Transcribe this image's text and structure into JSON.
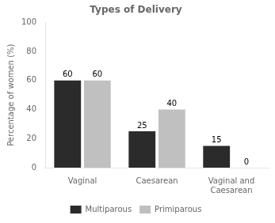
{
  "chart_data": {
    "type": "bar",
    "title": "Types of Delivery",
    "ylabel": "Percentage of women (%)",
    "categories": [
      "Vaginal",
      "Caesarean",
      "Vaginal and\nCaesarean"
    ],
    "series": [
      {
        "name": "Multiparous",
        "color": "#2b2b2b",
        "values": [
          60,
          25,
          15
        ]
      },
      {
        "name": "Primiparous",
        "color": "#c0c0c0",
        "values": [
          60,
          40,
          0
        ]
      }
    ],
    "ylim": [
      0,
      100
    ],
    "yticks": [
      0,
      20,
      40,
      60,
      80,
      100
    ],
    "grid": false,
    "legend": "bottom",
    "data_labels": true
  }
}
